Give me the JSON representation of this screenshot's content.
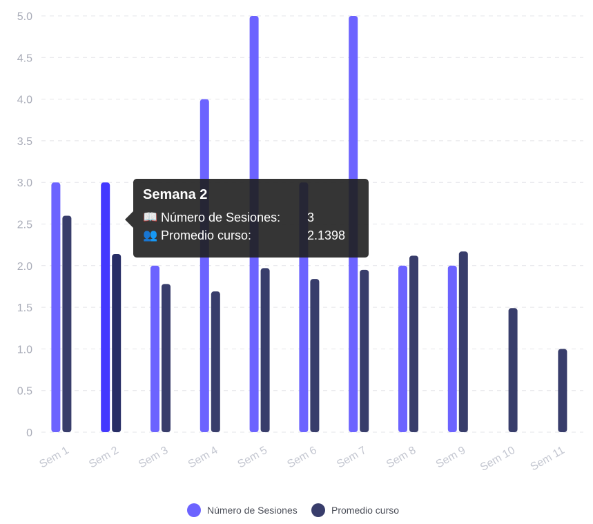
{
  "chart_data": {
    "type": "bar",
    "categories": [
      "Sem 1",
      "Sem 2",
      "Sem 3",
      "Sem 4",
      "Sem 5",
      "Sem 6",
      "Sem 7",
      "Sem 8",
      "Sem 9",
      "Sem 10",
      "Sem 11"
    ],
    "series": [
      {
        "name": "Número de Sesiones",
        "color": "#6c63ff",
        "values": [
          3,
          3,
          2,
          4,
          5,
          3,
          5,
          2,
          2,
          null,
          null
        ]
      },
      {
        "name": "Promedio curso",
        "color": "#383d6b",
        "values": [
          2.6,
          2.1398,
          1.78,
          1.69,
          1.97,
          1.84,
          1.95,
          2.12,
          2.17,
          1.49,
          1.0
        ]
      }
    ],
    "highlight": {
      "series": 0,
      "index": 1,
      "color": "#4338ff",
      "dark_color": "#272d66"
    },
    "yticks": [
      "0",
      "0.5",
      "1.0",
      "1.5",
      "2.0",
      "2.5",
      "3.0",
      "3.5",
      "4.0",
      "4.5",
      "5.0"
    ],
    "ylim": [
      0,
      5
    ],
    "grid": true,
    "legend": "bottom"
  },
  "tooltip": {
    "title": "Semana 2",
    "rows": [
      {
        "icon": "📖",
        "label": "Número de Sesiones:",
        "value": "3"
      },
      {
        "icon": "👥",
        "label": "Promedio curso:",
        "value": "2.1398"
      }
    ]
  }
}
